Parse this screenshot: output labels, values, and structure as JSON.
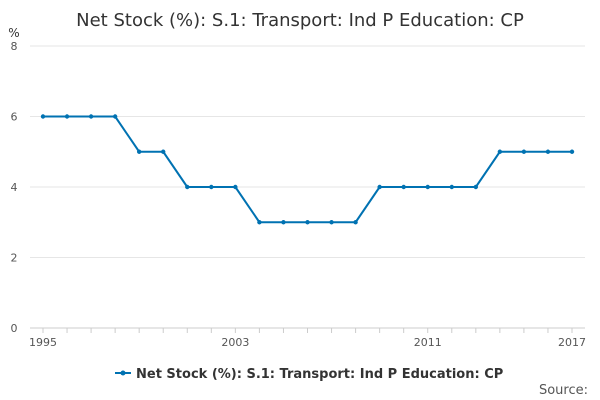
{
  "chart_data": {
    "type": "line",
    "title": "Net Stock (%): S.1: Transport: Ind P Education: CP",
    "ylabel": "%",
    "xlabel": "",
    "ylim": [
      0,
      8
    ],
    "xlim": [
      1995,
      2017
    ],
    "yticks": [
      0,
      2,
      4,
      6,
      8
    ],
    "xticks": [
      1995,
      2003,
      2011,
      2017
    ],
    "grid": true,
    "legend_position": "bottom",
    "series": [
      {
        "name": "Net Stock (%): S.1: Transport: Ind P Education: CP",
        "color": "#0072b2",
        "x": [
          1995,
          1996,
          1997,
          1998,
          1999,
          2000,
          2001,
          2002,
          2003,
          2004,
          2005,
          2006,
          2007,
          2008,
          2009,
          2010,
          2011,
          2012,
          2013,
          2014,
          2015,
          2016,
          2017
        ],
        "values": [
          6,
          6,
          6,
          6,
          5,
          5,
          4,
          4,
          4,
          3,
          3,
          3,
          3,
          3,
          4,
          4,
          4,
          4,
          4,
          5,
          5,
          5,
          5
        ]
      }
    ]
  },
  "source_label": "Source:"
}
